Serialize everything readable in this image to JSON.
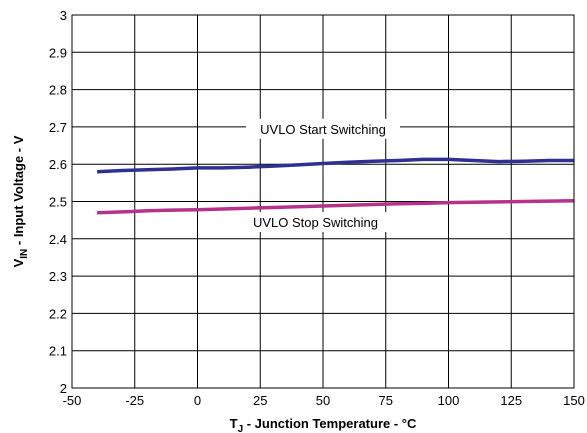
{
  "chart_data": {
    "type": "line",
    "xlabel": {
      "main": "T",
      "sub": "J",
      "rest": " - Junction Temperature - °C"
    },
    "ylabel": {
      "main": "V",
      "sub": "IN",
      "rest": " - Input Voltage - V"
    },
    "xlim": [
      -50,
      150
    ],
    "ylim": [
      2,
      3
    ],
    "x_ticks": [
      -50,
      -25,
      0,
      25,
      50,
      75,
      100,
      125,
      150
    ],
    "y_ticks": [
      2,
      2.1,
      2.2,
      2.3,
      2.4,
      2.5,
      2.6,
      2.7,
      2.8,
      2.9,
      3
    ],
    "x_tick_labels": [
      "-50",
      "-25",
      "0",
      "25",
      "50",
      "75",
      "100",
      "125",
      "150"
    ],
    "y_tick_labels": [
      "2",
      "2.1",
      "2.2",
      "2.3",
      "2.4",
      "2.5",
      "2.6",
      "2.7",
      "2.8",
      "2.9",
      "3"
    ],
    "grid": true,
    "series": [
      {
        "name": "UVLO Start Switching",
        "color": "#2e3192",
        "x": [
          -40,
          -30,
          -20,
          -10,
          0,
          10,
          20,
          30,
          40,
          50,
          60,
          70,
          80,
          90,
          100,
          110,
          120,
          130,
          140,
          150
        ],
        "y": [
          2.58,
          2.583,
          2.585,
          2.587,
          2.59,
          2.59,
          2.592,
          2.595,
          2.598,
          2.602,
          2.605,
          2.608,
          2.61,
          2.613,
          2.613,
          2.61,
          2.607,
          2.608,
          2.61,
          2.61
        ]
      },
      {
        "name": "UVLO Stop Switching",
        "color": "#b5338a",
        "x": [
          -40,
          -30,
          -20,
          -10,
          0,
          10,
          20,
          30,
          40,
          50,
          60,
          70,
          80,
          90,
          100,
          110,
          120,
          130,
          140,
          150
        ],
        "y": [
          2.47,
          2.472,
          2.475,
          2.477,
          2.478,
          2.48,
          2.482,
          2.484,
          2.486,
          2.488,
          2.49,
          2.492,
          2.494,
          2.495,
          2.497,
          2.498,
          2.499,
          2.5,
          2.501,
          2.502
        ]
      }
    ],
    "annotations": [
      {
        "text": "UVLO Start Switching",
        "x": 50,
        "y": 2.695
      },
      {
        "text": "UVLO Stop Switching",
        "x": 47,
        "y": 2.445
      }
    ]
  }
}
